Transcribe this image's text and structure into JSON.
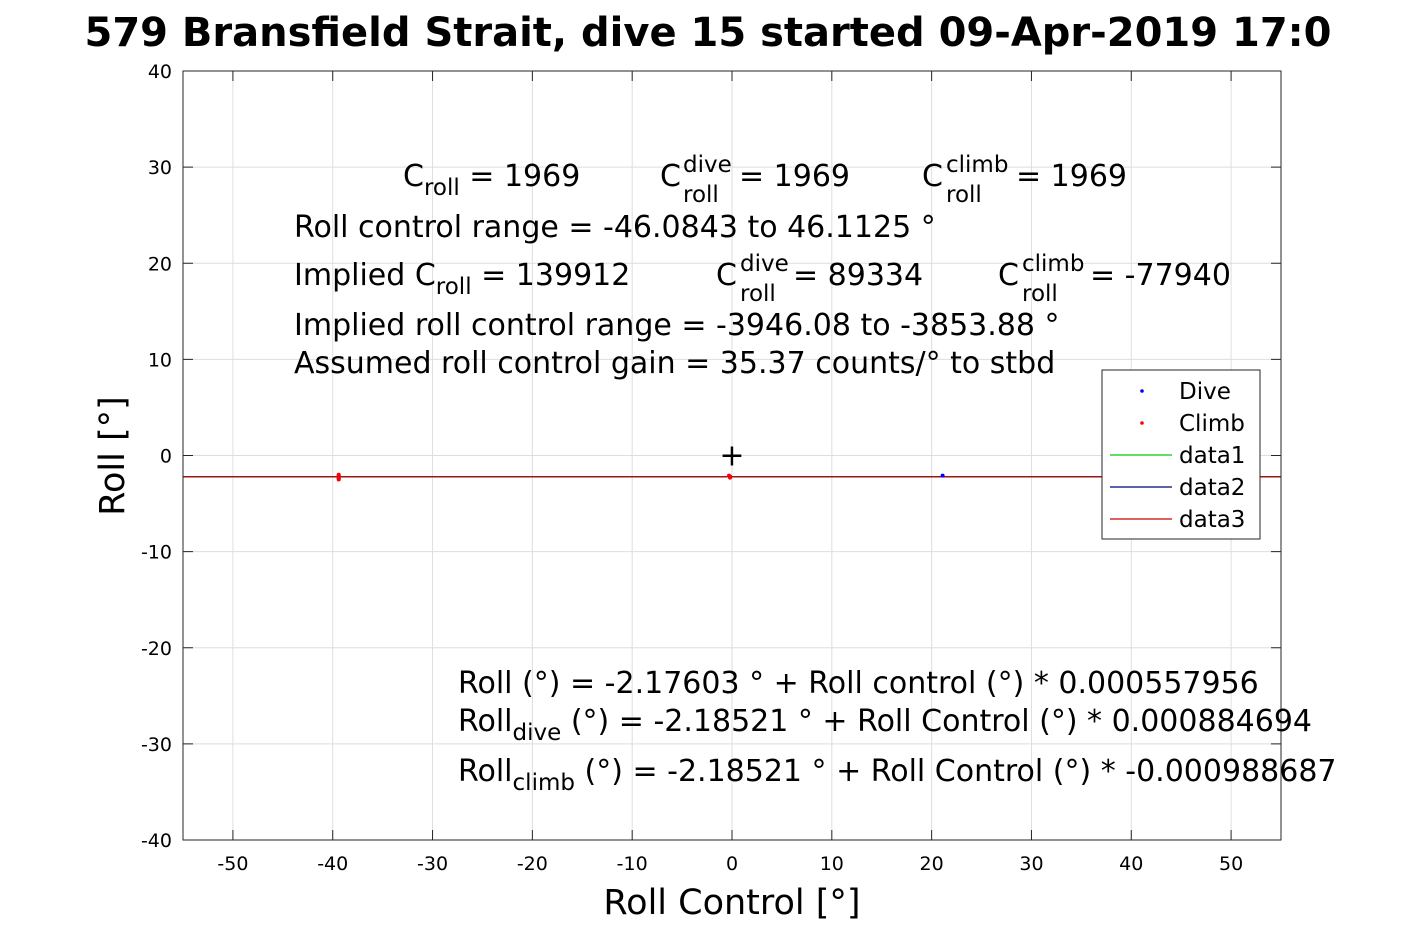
{
  "chart_data": {
    "type": "scatter",
    "title": "579 Bransfield Strait, dive 15 started 09-Apr-2019 17:0",
    "xlabel": "Roll Control [°]",
    "ylabel": "Roll [°]",
    "xlim": [
      -55,
      55
    ],
    "ylim": [
      -40,
      40
    ],
    "xticks": [
      -50,
      -40,
      -30,
      -20,
      -10,
      0,
      10,
      20,
      30,
      40,
      50
    ],
    "yticks": [
      -40,
      -30,
      -20,
      -10,
      0,
      10,
      20,
      30,
      40
    ],
    "grid": true,
    "legend_position": "right",
    "series": [
      {
        "name": "Dive",
        "kind": "points",
        "color": "#0000ff",
        "points": [
          [
            -39.4,
            -2.1
          ],
          [
            -39.4,
            -2.4
          ],
          [
            -0.2,
            -2.2
          ],
          [
            21.1,
            -2.1
          ]
        ]
      },
      {
        "name": "Climb",
        "kind": "points",
        "color": "#ff0000",
        "points": [
          [
            -39.4,
            -2.0
          ],
          [
            -39.4,
            -2.3
          ],
          [
            -39.4,
            -2.5
          ],
          [
            -0.3,
            -2.1
          ],
          [
            -0.2,
            -2.3
          ]
        ]
      },
      {
        "name": "data1",
        "kind": "line",
        "color": "#00cc00",
        "x": [
          -55,
          55
        ],
        "y": [
          -2.2,
          -2.2
        ]
      },
      {
        "name": "data2",
        "kind": "line",
        "color": "#000080",
        "x": [
          -55,
          55
        ],
        "y": [
          -2.22,
          -2.22
        ]
      },
      {
        "name": "data3",
        "kind": "line",
        "color": "#cc0000",
        "x": [
          -55,
          55
        ],
        "y": [
          -2.23,
          -2.23
        ]
      }
    ],
    "marker": {
      "symbol": "+",
      "x": 0,
      "y": 0
    }
  },
  "annotations": {
    "line1": {
      "c_roll_base": "C",
      "c_roll_sub": "roll",
      "c_roll_val": " = 1969",
      "c_dive_base": "C",
      "c_dive_sup": "dive",
      "c_dive_sub": "roll",
      "c_dive_val": " = 1969",
      "c_climb_base": "C",
      "c_climb_sup": "climb",
      "c_climb_sub": "roll",
      "c_climb_val": " = 1969"
    },
    "line2": "Roll control range = -46.0843 to 46.1125 °",
    "line3": {
      "implied_prefix": "Implied C",
      "implied_sub": "roll",
      "implied_val": " = 139912",
      "c_dive_base": "C",
      "c_dive_sup": "dive",
      "c_dive_sub": "roll",
      "c_dive_val": " = 89334",
      "c_climb_base": "C",
      "c_climb_sup": "climb",
      "c_climb_sub": "roll",
      "c_climb_val": " = -77940"
    },
    "line4": "Implied roll control range = -3946.08 to -3853.88 °",
    "line5": "Assumed roll control gain = 35.37 counts/° to stbd",
    "eq1": "Roll (°) = -2.17603 ° + Roll control (°) * 0.000557956",
    "eq2": {
      "base": "Roll",
      "sub": "dive",
      "rest": " (°) = -2.18521 ° + Roll Control (°) * 0.000884694"
    },
    "eq3": {
      "base": "Roll",
      "sub": "climb",
      "rest": " (°) = -2.18521 ° + Roll Control (°) * -0.000988687"
    }
  }
}
